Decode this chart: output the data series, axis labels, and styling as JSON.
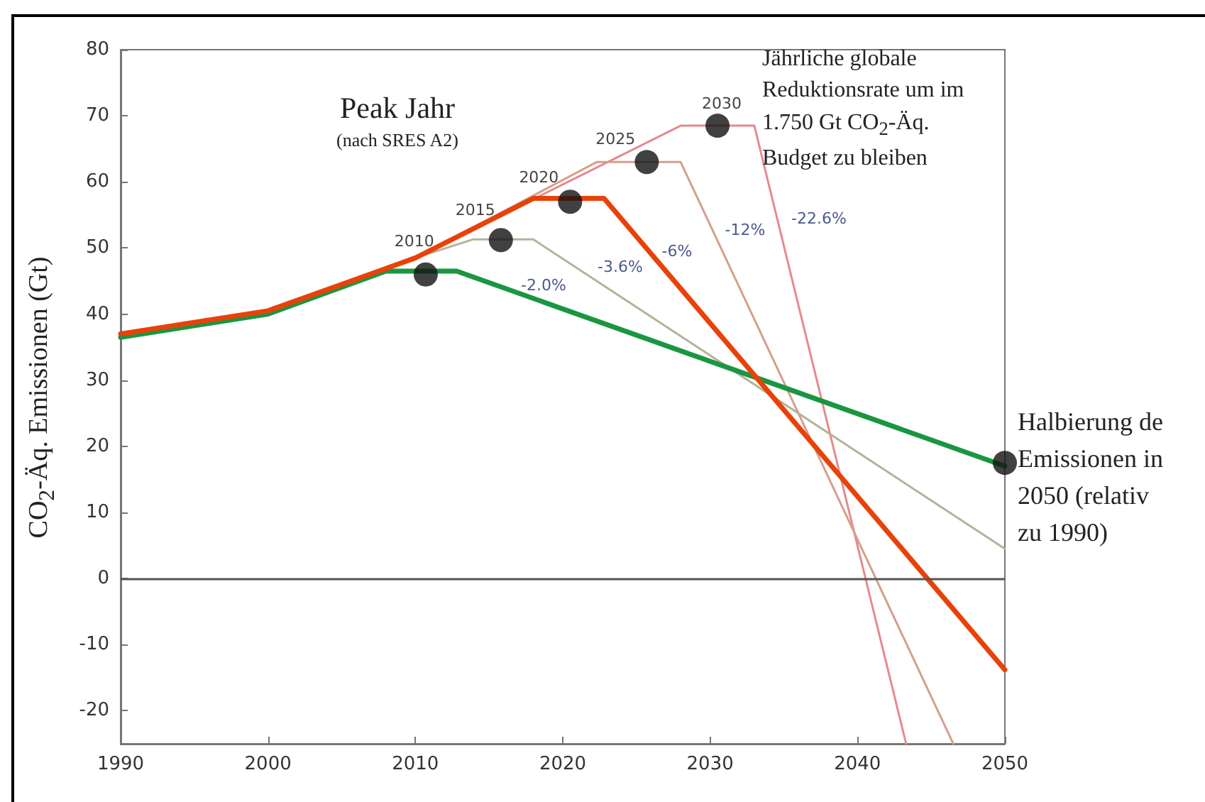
{
  "chart_data": {
    "type": "line",
    "ylabel": "CO$_{2}$-Äq. Emissionen (Gt)",
    "xlim": [
      1990,
      2050
    ],
    "xticks": [
      1990,
      2000,
      2010,
      2020,
      2030,
      2040,
      2050
    ],
    "ylim": [
      -25,
      80
    ],
    "yticks": [
      -20,
      -10,
      0,
      10,
      20,
      30,
      40,
      50,
      60,
      70,
      80
    ],
    "grid": false,
    "marker": "none",
    "line_style": "solid",
    "ref_lines": [
      {
        "axis": "y",
        "value": 0,
        "color": "#555555"
      }
    ],
    "series": [
      {
        "color": "#e58a8f",
        "x": [
          1990,
          2000,
          2010,
          2028,
          2033,
          2043.3
        ],
        "values": [
          37,
          40.5,
          48.5,
          68.5,
          68.5,
          -25
        ]
      },
      {
        "color": "#d4a08a",
        "x": [
          1990,
          2000,
          2010,
          2022.3,
          2028,
          2046.5
        ],
        "values": [
          37,
          40.5,
          48.5,
          63,
          63,
          -25
        ]
      },
      {
        "color": "#b5b29a",
        "x": [
          1990,
          2000,
          2010,
          2013.9,
          2018,
          2050
        ],
        "values": [
          37,
          40.5,
          48.5,
          51.3,
          51.3,
          4.5
        ]
      },
      {
        "color": "#1a9641",
        "x": [
          1990,
          2000,
          2008,
          2012.8,
          2050
        ],
        "values": [
          36.5,
          40,
          46.5,
          46.5,
          17
        ]
      },
      {
        "color": "#e8420a",
        "x": [
          1990,
          2000,
          2010,
          2018,
          2022.8,
          2050
        ],
        "values": [
          37,
          40.5,
          48.5,
          57.5,
          57.5,
          -13.8
        ]
      },
      {
        "type": "scatter",
        "marker": "circle",
        "color": "#111111",
        "x": [
          2010.7,
          2015.8,
          2020.5,
          2025.7,
          2030.5,
          2050
        ],
        "values": [
          46,
          51.2,
          57,
          63,
          68.5,
          17.5
        ]
      }
    ],
    "annotations": [
      "Peak Jahr",
      "(nach SRES A2)",
      "Jährliche globale Reduktionsrate um im 1.750 Gt CO$_{2}$-Äq. Budget zu bleiben",
      "Halbierung de Emissionen in 2050 (relativ zu 1990)",
      {
        "text": "2010",
        "x": 2010.7,
        "y": 46
      },
      {
        "text": "2015",
        "x": 2015.8,
        "y": 51.2
      },
      {
        "text": "2020",
        "x": 2020.5,
        "y": 57
      },
      {
        "text": "2025",
        "x": 2025.7,
        "y": 63
      },
      {
        "text": "2030",
        "x": 2030.5,
        "y": 68.5
      },
      "-2.0%",
      "-3.6%",
      "-6%",
      "-12%",
      "-22.6%"
    ]
  }
}
